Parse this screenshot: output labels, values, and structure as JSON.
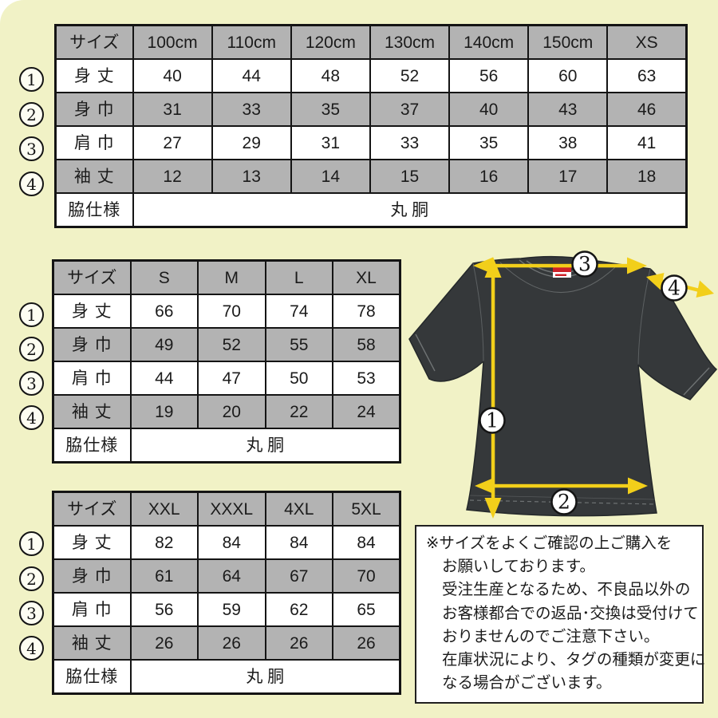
{
  "colors": {
    "background": "#f1f2c6",
    "table_header_gray": "#b3b3b3",
    "arrow_yellow": "#f2cf1a",
    "shirt_body": "#35383a",
    "tag_red": "#cc2229"
  },
  "size_chart_tables": [
    {
      "corner_label": "サイズ",
      "columns": [
        "100cm",
        "110cm",
        "120cm",
        "130cm",
        "140cm",
        "150cm",
        "XS"
      ],
      "rows": [
        {
          "marker": "1",
          "label": "身 丈",
          "values": [
            "40",
            "44",
            "48",
            "52",
            "56",
            "60",
            "63"
          ]
        },
        {
          "marker": "2",
          "label": "身 巾",
          "values": [
            "31",
            "33",
            "35",
            "37",
            "40",
            "43",
            "46"
          ]
        },
        {
          "marker": "3",
          "label": "肩 巾",
          "values": [
            "27",
            "29",
            "31",
            "33",
            "35",
            "38",
            "41"
          ]
        },
        {
          "marker": "4",
          "label": "袖 丈",
          "values": [
            "12",
            "13",
            "14",
            "15",
            "16",
            "17",
            "18"
          ]
        }
      ],
      "side_spec_label": "脇仕様",
      "side_spec_value": "丸 胴"
    },
    {
      "corner_label": "サイズ",
      "columns": [
        "S",
        "M",
        "L",
        "XL"
      ],
      "rows": [
        {
          "marker": "1",
          "label": "身 丈",
          "values": [
            "66",
            "70",
            "74",
            "78"
          ]
        },
        {
          "marker": "2",
          "label": "身 巾",
          "values": [
            "49",
            "52",
            "55",
            "58"
          ]
        },
        {
          "marker": "3",
          "label": "肩 巾",
          "values": [
            "44",
            "47",
            "50",
            "53"
          ]
        },
        {
          "marker": "4",
          "label": "袖 丈",
          "values": [
            "19",
            "20",
            "22",
            "24"
          ]
        }
      ],
      "side_spec_label": "脇仕様",
      "side_spec_value": "丸 胴"
    },
    {
      "corner_label": "サイズ",
      "columns": [
        "XXL",
        "XXXL",
        "4XL",
        "5XL"
      ],
      "rows": [
        {
          "marker": "1",
          "label": "身 丈",
          "values": [
            "82",
            "84",
            "84",
            "84"
          ]
        },
        {
          "marker": "2",
          "label": "身 巾",
          "values": [
            "61",
            "64",
            "67",
            "70"
          ]
        },
        {
          "marker": "3",
          "label": "肩 巾",
          "values": [
            "56",
            "59",
            "62",
            "65"
          ]
        },
        {
          "marker": "4",
          "label": "袖 丈",
          "values": [
            "26",
            "26",
            "26",
            "26"
          ]
        }
      ],
      "side_spec_label": "脇仕様",
      "side_spec_value": "丸 胴"
    }
  ],
  "diagram": {
    "markers": [
      "1",
      "2",
      "3",
      "4"
    ]
  },
  "notice": {
    "lines": [
      "※サイズをよくご確認の上ご購入を",
      "お願いしております。",
      "受注生産となるため、不良品以外の",
      "お客様都合での返品･交換は受付けて",
      "おりませんのでご注意下さい。",
      "在庫状況により、タグの種類が変更に",
      "なる場合がございます。"
    ]
  }
}
